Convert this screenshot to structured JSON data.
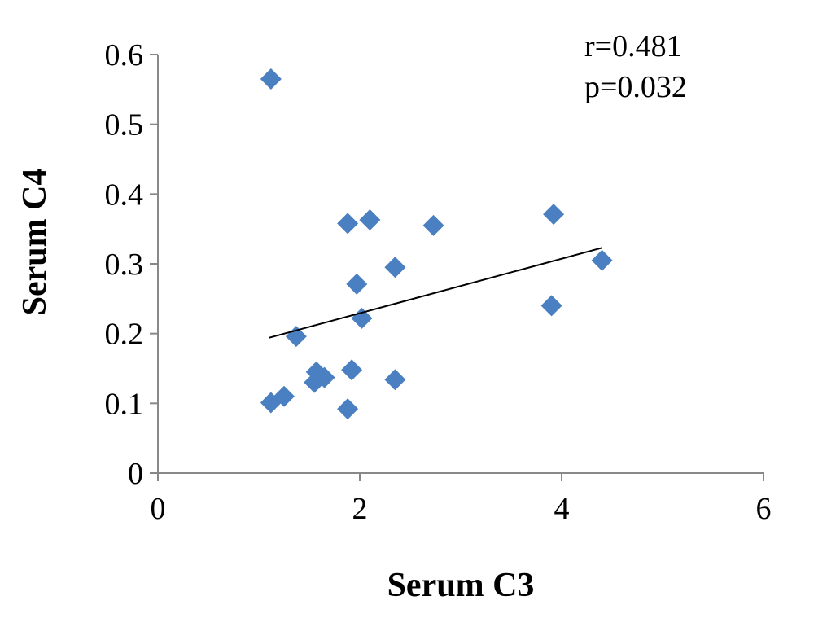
{
  "chart_data": {
    "type": "scatter",
    "title": "",
    "xlabel": "Serum C3",
    "ylabel": "Serum C4",
    "xlim": [
      0,
      6
    ],
    "ylim": [
      0,
      0.6
    ],
    "x_ticks": [
      "0",
      "2",
      "4",
      "6"
    ],
    "y_ticks": [
      "0",
      "0.1",
      "0.2",
      "0.3",
      "0.4",
      "0.5",
      "0.6"
    ],
    "grid": false,
    "marker": "diamond",
    "marker_color": "#4a7fc1",
    "trendline": {
      "type": "linear",
      "from": {
        "x": 1.1,
        "y": 0.194
      },
      "to": {
        "x": 4.4,
        "y": 0.323
      },
      "color": "#000000"
    },
    "annotations": [
      "r=0.481",
      "p=0.032"
    ],
    "points": [
      {
        "x": 1.12,
        "y": 0.565
      },
      {
        "x": 1.88,
        "y": 0.358
      },
      {
        "x": 2.1,
        "y": 0.363
      },
      {
        "x": 2.73,
        "y": 0.355
      },
      {
        "x": 3.92,
        "y": 0.371
      },
      {
        "x": 2.35,
        "y": 0.295
      },
      {
        "x": 4.4,
        "y": 0.305
      },
      {
        "x": 1.97,
        "y": 0.271
      },
      {
        "x": 3.9,
        "y": 0.24
      },
      {
        "x": 2.02,
        "y": 0.222
      },
      {
        "x": 1.37,
        "y": 0.196
      },
      {
        "x": 1.92,
        "y": 0.148
      },
      {
        "x": 1.57,
        "y": 0.145
      },
      {
        "x": 1.65,
        "y": 0.137
      },
      {
        "x": 1.55,
        "y": 0.13
      },
      {
        "x": 2.35,
        "y": 0.134
      },
      {
        "x": 1.25,
        "y": 0.11
      },
      {
        "x": 1.12,
        "y": 0.101
      },
      {
        "x": 1.88,
        "y": 0.092
      }
    ]
  }
}
